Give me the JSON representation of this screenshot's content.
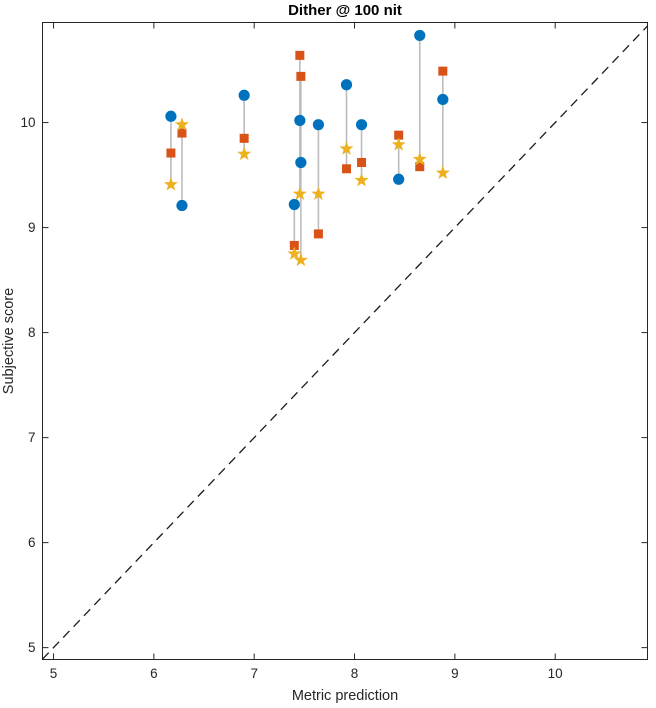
{
  "figure": {
    "background": "#ffffff"
  },
  "chart_data": {
    "type": "scatter",
    "title": "Dither @ 100 nit",
    "xlabel": "Metric prediction",
    "ylabel": "Subjective score",
    "xlim": [
      4.89,
      10.92
    ],
    "ylim": [
      4.887,
      10.953
    ],
    "xticks": [
      5,
      6,
      7,
      8,
      9,
      10
    ],
    "yticks": [
      5,
      6,
      7,
      8,
      9,
      10
    ],
    "grid": false,
    "legend": "none",
    "identity_line": {
      "shown": true,
      "style": "dashed",
      "color": "#1a1a1a",
      "from": 4.89,
      "to": 10.92
    },
    "series_markers": [
      {
        "name": "circle",
        "color": "#0072BD"
      },
      {
        "name": "square",
        "color": "#D95319"
      },
      {
        "name": "star",
        "color": "#EDB120"
      }
    ],
    "groups": [
      {
        "x": 6.17,
        "circle": 10.06,
        "square": 9.71,
        "star": 9.41
      },
      {
        "x": 6.28,
        "circle": 9.21,
        "square": 9.9,
        "star": 9.98
      },
      {
        "x": 6.9,
        "circle": 10.26,
        "square": 9.85,
        "star": 9.7
      },
      {
        "x": 7.4,
        "circle": 9.22,
        "square": 8.83,
        "star": 8.75
      },
      {
        "x": 7.455,
        "circle": 10.02,
        "square": 10.64,
        "star": 9.32
      },
      {
        "x": 7.465,
        "circle": 9.62,
        "square": 10.44,
        "star": 8.69
      },
      {
        "x": 7.64,
        "circle": 9.98,
        "square": 8.94,
        "star": 9.32
      },
      {
        "x": 7.92,
        "circle": 10.36,
        "square": 9.56,
        "star": 9.75
      },
      {
        "x": 8.07,
        "circle": 9.98,
        "square": 9.62,
        "star": 9.45
      },
      {
        "x": 8.44,
        "circle": 9.46,
        "square": 9.88,
        "star": 9.79
      },
      {
        "x": 8.65,
        "circle": 10.83,
        "square": 9.58,
        "star": 9.65
      },
      {
        "x": 8.88,
        "circle": 10.22,
        "square": 10.49,
        "star": 9.52
      }
    ],
    "colors": {
      "circle": "#0072BD",
      "square": "#D95319",
      "star": "#EDB120",
      "stem": "#bcbcbc",
      "axis": "#262626",
      "tick_label": "#262626",
      "title": "#000000",
      "identity": "#1a1a1a"
    }
  }
}
